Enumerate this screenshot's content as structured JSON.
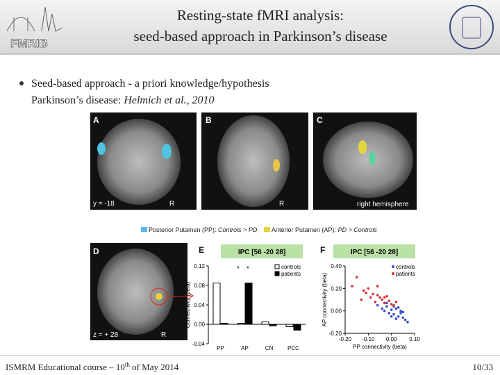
{
  "header": {
    "title_line1": "Resting-state fMRI analysis:",
    "title_line2": "seed-based approach in Parkinson’s disease",
    "logo_text": "FMRIB"
  },
  "bullets": {
    "line1": "Seed-based approach - a priori knowledge/hypothesis",
    "line2": "Parkinson’s disease: ",
    "citation": "Helmich et al., 2010"
  },
  "figure": {
    "panel_labels": [
      "A",
      "B",
      "C",
      "D",
      "E",
      "F"
    ],
    "captions": {
      "a_coord": "y = -18",
      "a_side": "R",
      "b_side": "R",
      "c_side": "right hemisphere",
      "d_coord": "z = + 28",
      "d_side": "R"
    },
    "legend": [
      {
        "text": "Posterior Putamen (PP): ",
        "italic": "Controls > PD"
      },
      {
        "text": "Anterior Putamen (AP): ",
        "italic": "PD > Controls"
      }
    ]
  },
  "chart_data": [
    {
      "type": "bar",
      "title": "IPC [56 -20 28]",
      "y_label": "Connectivity (beta)",
      "categories": [
        "PP",
        "AP",
        "CN",
        "PCC"
      ],
      "series": [
        {
          "name": "controls",
          "color": "#ffffff",
          "values": [
            0.085,
            0.002,
            0.005,
            -0.005
          ]
        },
        {
          "name": "patients",
          "color": "#000000",
          "values": [
            0.002,
            0.085,
            -0.003,
            -0.012
          ]
        }
      ],
      "annotations": [
        "*",
        "*"
      ],
      "ylim": [
        -0.04,
        0.12
      ],
      "yticks": [
        -0.04,
        {
          "value": 0,
          "label": "0.00"
        },
        0.04,
        0.08,
        0.12
      ]
    },
    {
      "type": "scatter",
      "title": "IPC [56 -20 28]",
      "x_label": "PP connectivity (beta)",
      "y_label": "AP connectivity (beta)",
      "series": [
        {
          "name": "controls",
          "color": "#3a4fc8",
          "x": [
            -0.06,
            -0.04,
            -0.03,
            -0.02,
            -0.01,
            0.0,
            0.01,
            0.02,
            0.03,
            0.04,
            0.05,
            0.06,
            0.07,
            0.03,
            0.0,
            -0.02,
            0.05,
            0.01,
            0.02,
            0.04
          ],
          "values": [
            0.05,
            0.02,
            0.0,
            0.04,
            -0.02,
            0.01,
            -0.03,
            0.02,
            -0.05,
            -0.02,
            -0.06,
            -0.08,
            -0.1,
            0.03,
            -0.05,
            0.07,
            -0.01,
            0.04,
            -0.07,
            0.0
          ]
        },
        {
          "name": "patients",
          "color": "#d6323a",
          "x": [
            -0.17,
            -0.15,
            -0.13,
            -0.12,
            -0.1,
            -0.09,
            -0.08,
            -0.07,
            -0.06,
            -0.05,
            -0.04,
            -0.03,
            -0.02,
            -0.01,
            0.0,
            0.01,
            0.02,
            -0.11,
            -0.06,
            -0.03
          ],
          "values": [
            0.22,
            0.3,
            0.1,
            0.18,
            0.2,
            0.12,
            0.15,
            0.08,
            0.14,
            0.12,
            0.1,
            0.07,
            0.13,
            0.09,
            0.06,
            0.05,
            0.08,
            0.16,
            0.22,
            0.12
          ]
        }
      ],
      "xlim": [
        -0.2,
        0.1
      ],
      "xticks": [
        {
          "value": -0.2,
          "label": "-0.20"
        },
        {
          "value": -0.1,
          "label": "-0.10"
        },
        {
          "value": 0,
          "label": "0.00"
        },
        {
          "value": 0.1,
          "label": "0.10"
        }
      ],
      "ylim": [
        -0.2,
        0.4
      ],
      "yticks": [
        {
          "value": -0.2,
          "label": "-0.20"
        },
        {
          "value": 0,
          "label": "0.00"
        },
        {
          "value": 0.2,
          "label": "0.20"
        },
        {
          "value": 0.4,
          "label": "0.40"
        }
      ]
    }
  ],
  "footer": {
    "left_before": "ISMRM Educational course – 10",
    "left_sup": "th",
    "left_after": " of May 2014",
    "page": "10/33"
  }
}
